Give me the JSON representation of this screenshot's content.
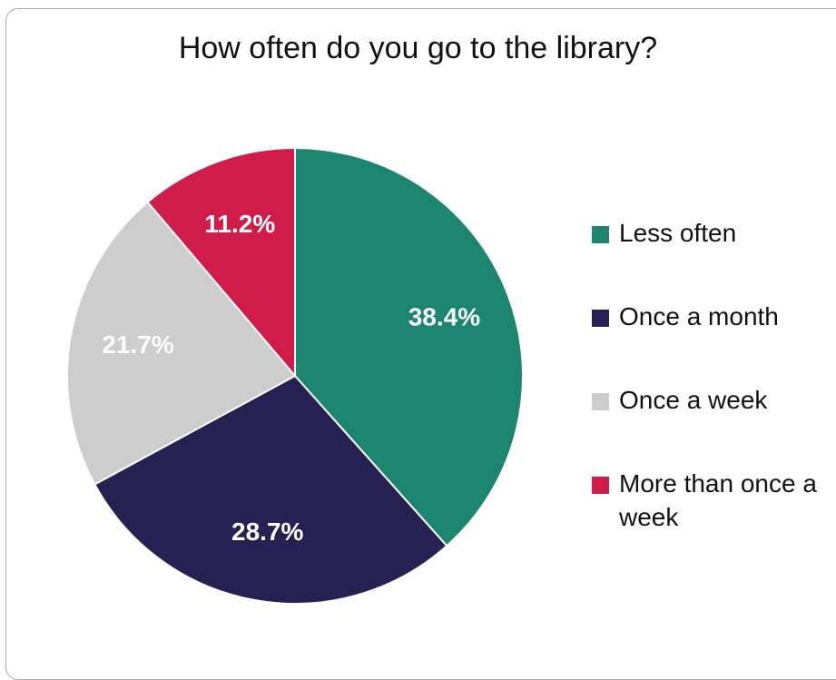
{
  "chart_data": {
    "type": "pie",
    "title": "How often do you go to the library?",
    "slices": [
      {
        "label": "Less often",
        "value": 38.4,
        "display": "38.4%",
        "color": "#1b8570"
      },
      {
        "label": "Once a month",
        "value": 28.7,
        "display": "28.7%",
        "color": "#272153"
      },
      {
        "label": "Once a week",
        "value": 21.7,
        "display": "21.7%",
        "color": "#cdcdcd"
      },
      {
        "label": "More than once a week",
        "value": 11.2,
        "display": "11.2%",
        "color": "#d01c48"
      }
    ],
    "legend_position": "right"
  }
}
